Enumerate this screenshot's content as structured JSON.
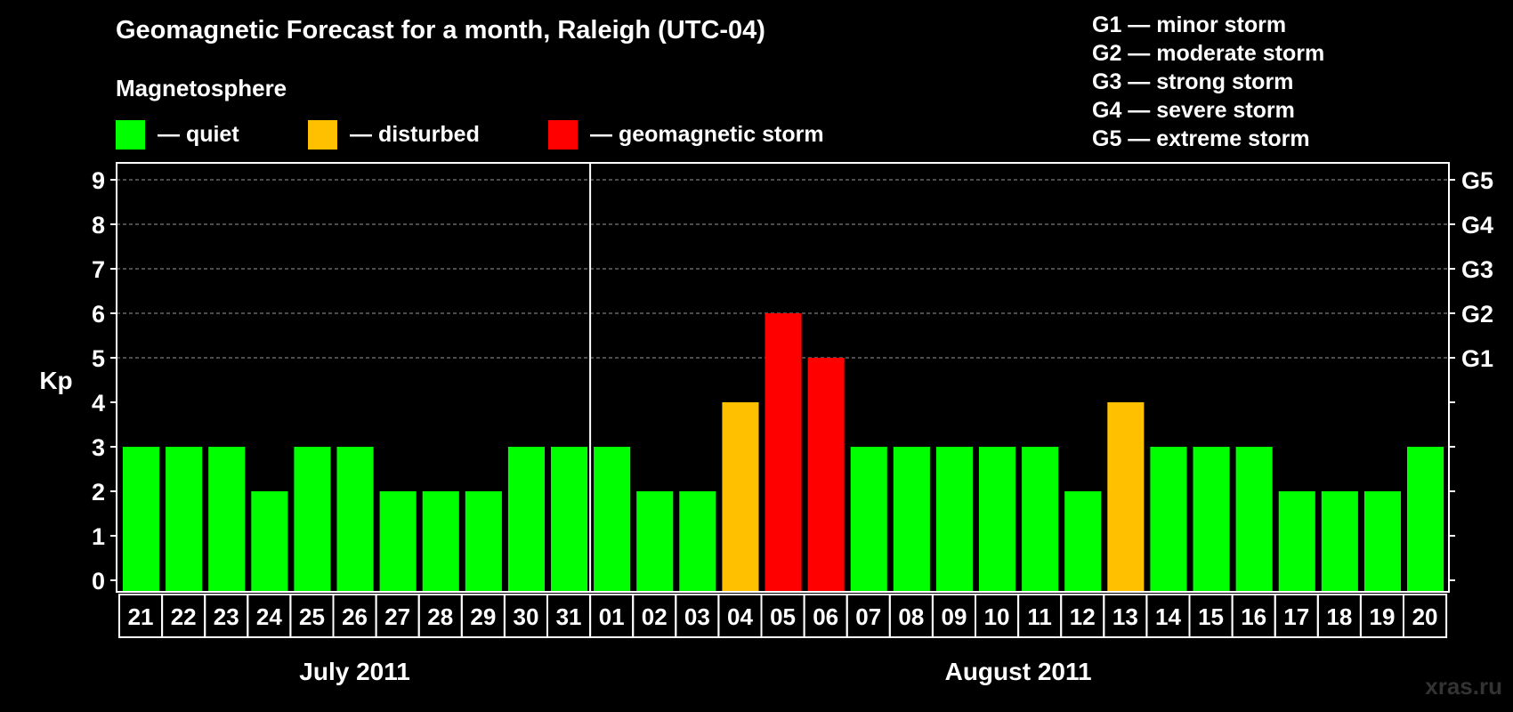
{
  "chart_data": {
    "type": "bar",
    "title": "Geomagnetic Forecast for a month, Raleigh (UTC-04)",
    "subtitle": "Magnetosphere",
    "ylabel": "Kp",
    "ylim": [
      0,
      9
    ],
    "yticks": [
      "0",
      "1",
      "2",
      "3",
      "4",
      "5",
      "6",
      "7",
      "8",
      "9"
    ],
    "right_ticks": [
      {
        "value": 5,
        "label": "G1"
      },
      {
        "value": 6,
        "label": "G2"
      },
      {
        "value": 7,
        "label": "G3"
      },
      {
        "value": 8,
        "label": "G4"
      },
      {
        "value": 9,
        "label": "G5"
      }
    ],
    "grid": "dashed at 5-9",
    "categories": [
      "21",
      "22",
      "23",
      "24",
      "25",
      "26",
      "27",
      "28",
      "29",
      "30",
      "31",
      "01",
      "02",
      "03",
      "04",
      "05",
      "06",
      "07",
      "08",
      "09",
      "10",
      "11",
      "12",
      "13",
      "14",
      "15",
      "16",
      "17",
      "18",
      "19",
      "20"
    ],
    "values": [
      3,
      3,
      3,
      2,
      3,
      3,
      2,
      2,
      2,
      3,
      3,
      3,
      2,
      2,
      4,
      6,
      5,
      3,
      3,
      3,
      3,
      3,
      2,
      4,
      3,
      3,
      3,
      2,
      2,
      2,
      3
    ],
    "status": [
      "quiet",
      "quiet",
      "quiet",
      "quiet",
      "quiet",
      "quiet",
      "quiet",
      "quiet",
      "quiet",
      "quiet",
      "quiet",
      "quiet",
      "quiet",
      "quiet",
      "disturbed",
      "storm",
      "storm",
      "quiet",
      "quiet",
      "quiet",
      "quiet",
      "quiet",
      "quiet",
      "disturbed",
      "quiet",
      "quiet",
      "quiet",
      "quiet",
      "quiet",
      "quiet",
      "quiet"
    ],
    "month_groups": [
      {
        "label": "July 2011",
        "count": 11
      },
      {
        "label": "August 2011",
        "count": 20
      }
    ],
    "legend": [
      {
        "key": "quiet",
        "label": "— quiet",
        "color": "#00ff00"
      },
      {
        "key": "disturbed",
        "label": "— disturbed",
        "color": "#ffc000"
      },
      {
        "key": "storm",
        "label": "— geomagnetic storm",
        "color": "#ff0000"
      }
    ],
    "storm_scale": [
      "G1 — minor storm",
      "G2 — moderate storm",
      "G3 — strong storm",
      "G4 — severe storm",
      "G5 — extreme storm"
    ]
  },
  "watermark": "xras.ru"
}
